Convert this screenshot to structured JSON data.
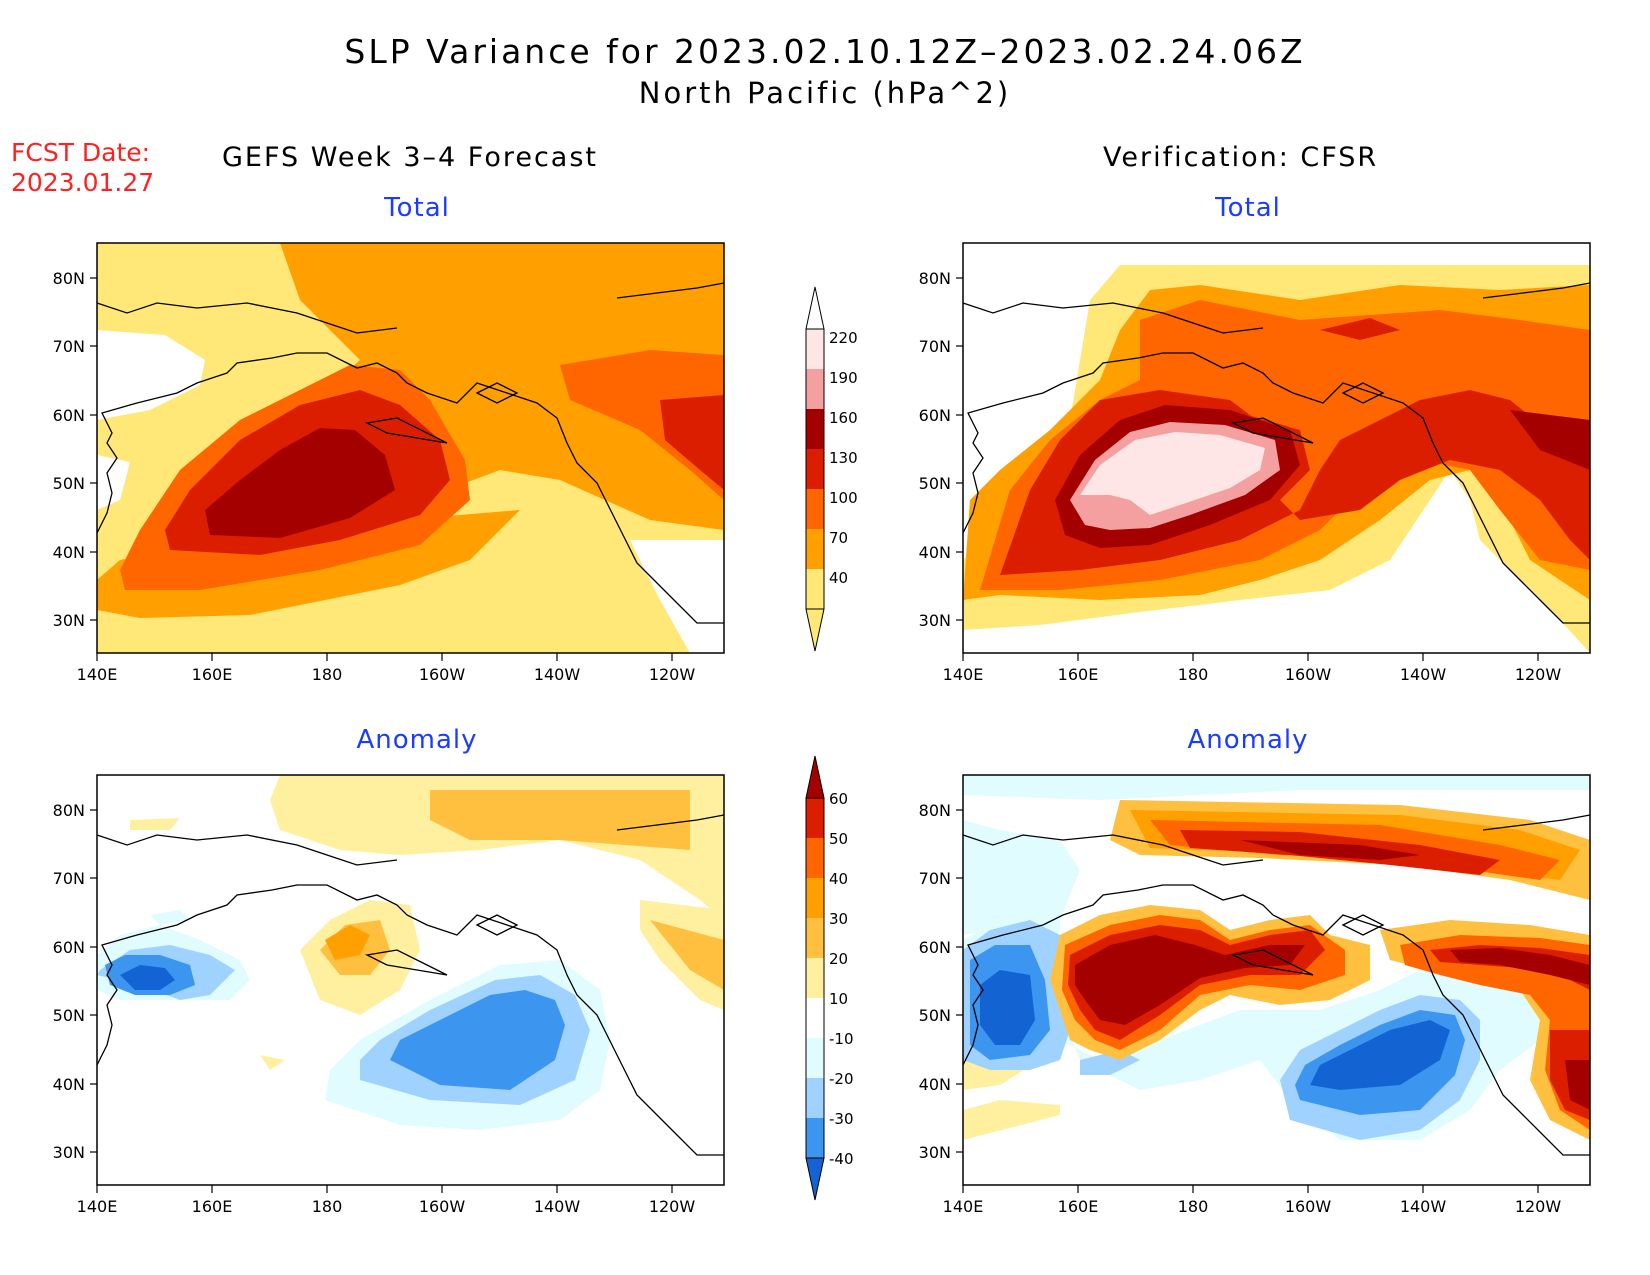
{
  "title": {
    "line1": "SLP Variance for 2023.02.10.12Z–2023.02.24.06Z",
    "line2": "North Pacific (hPa^2)"
  },
  "forecast_date": {
    "label": "FCST Date:",
    "value": "2023.01.27"
  },
  "left_column": {
    "heading": "GEFS Week 3–4 Forecast"
  },
  "right_column": {
    "heading": "Verification: CFSR"
  },
  "panels": {
    "top_left": {
      "subtitle": "Total"
    },
    "top_right": {
      "subtitle": "Total"
    },
    "bottom_left": {
      "subtitle": "Anomaly"
    },
    "bottom_right": {
      "subtitle": "Anomaly"
    }
  },
  "axes": {
    "lat_labels": [
      "80N",
      "70N",
      "60N",
      "50N",
      "40N",
      "30N"
    ],
    "lon_labels": [
      "140E",
      "160E",
      "180",
      "160W",
      "140W",
      "120W"
    ]
  },
  "colorbars": {
    "total": {
      "labels": [
        "220",
        "190",
        "160",
        "130",
        "100",
        "70",
        "40"
      ],
      "colors": [
        "#ffe6e6",
        "#f4a0a0",
        "#a50000",
        "#dc1e00",
        "#ff6600",
        "#ffa000",
        "#ffe878"
      ]
    },
    "anomaly": {
      "labels": [
        "60",
        "50",
        "40",
        "30",
        "20",
        "10",
        "-10",
        "-20",
        "-30",
        "-40"
      ],
      "colors": [
        "#a50000",
        "#dc1e00",
        "#ff6600",
        "#ffa000",
        "#ffc040",
        "#fff0a0",
        "#ffffff",
        "#e0fcff",
        "#a0d2ff",
        "#3c96f0",
        "#1463d2"
      ]
    }
  }
}
